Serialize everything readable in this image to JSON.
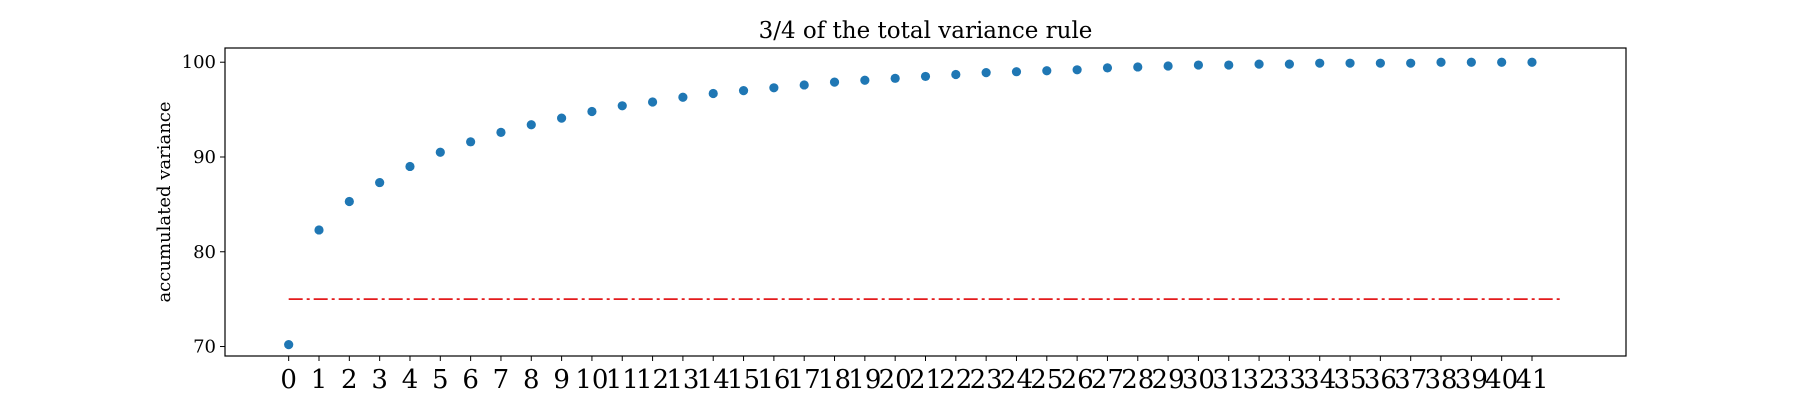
{
  "chart_data": {
    "type": "scatter",
    "title": "3/4 of the total variance rule",
    "xlabel": "",
    "ylabel": "accumulated variance",
    "x": [
      0,
      1,
      2,
      3,
      4,
      5,
      6,
      7,
      8,
      9,
      10,
      11,
      12,
      13,
      14,
      15,
      16,
      17,
      18,
      19,
      20,
      21,
      22,
      23,
      24,
      25,
      26,
      27,
      28,
      29,
      30,
      31,
      32,
      33,
      34,
      35,
      36,
      37,
      38,
      39,
      40,
      41
    ],
    "y": [
      70.2,
      82.3,
      85.3,
      87.3,
      89.0,
      90.5,
      91.6,
      92.6,
      93.4,
      94.1,
      94.8,
      95.4,
      95.8,
      96.3,
      96.7,
      97.0,
      97.3,
      97.6,
      97.9,
      98.1,
      98.3,
      98.5,
      98.7,
      98.9,
      99.0,
      99.1,
      99.2,
      99.4,
      99.5,
      99.6,
      99.7,
      99.7,
      99.8,
      99.8,
      99.9,
      99.9,
      99.9,
      99.9,
      100.0,
      100.0,
      100.0,
      100.0
    ],
    "yticks": [
      70,
      80,
      90,
      100
    ],
    "ylim": [
      69,
      101.5
    ],
    "xlim": [
      -2.1,
      44.1
    ],
    "threshold": {
      "value": 75,
      "x_start": 0,
      "x_end": 41,
      "color": "#e41a1c",
      "style": "dash-dot"
    },
    "point_color": "#1f77b4",
    "grid": false
  }
}
